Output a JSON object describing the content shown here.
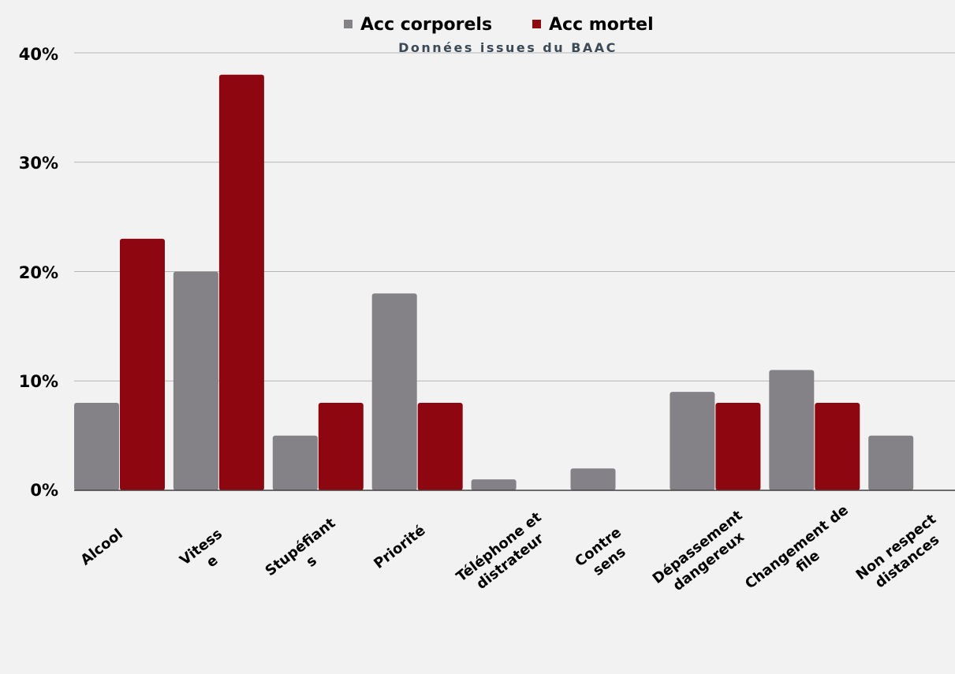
{
  "chart_data": {
    "type": "bar",
    "subtitle": "Données issues du BAAC",
    "categories": [
      [
        "Alcool"
      ],
      [
        "Vitess",
        "e"
      ],
      [
        "Stupéfiant",
        "s"
      ],
      [
        "Priorité"
      ],
      [
        "Téléphone et",
        "distrateur"
      ],
      [
        "Contre",
        "sens"
      ],
      [
        "Dépassement",
        "dangereux"
      ],
      [
        "Changement de",
        "file"
      ],
      [
        "Non respect",
        "distances"
      ]
    ],
    "series": [
      {
        "name": "Acc corporels",
        "color": "#858287",
        "values": [
          8,
          20,
          5,
          18,
          1,
          2,
          9,
          11,
          5
        ]
      },
      {
        "name": "Acc mortel",
        "color": "#8e0610",
        "values": [
          23,
          38,
          8,
          8,
          0,
          0,
          8,
          8,
          0
        ]
      }
    ],
    "ylim": [
      0,
      40
    ],
    "yticks": [
      "0%",
      "10%",
      "20%",
      "30%",
      "40%"
    ],
    "grid": true,
    "legend_position": "top-center"
  }
}
